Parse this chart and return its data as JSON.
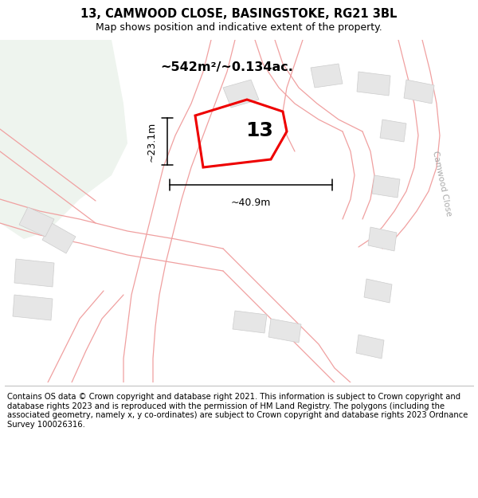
{
  "title": "13, CAMWOOD CLOSE, BASINGSTOKE, RG21 3BL",
  "subtitle": "Map shows position and indicative extent of the property.",
  "area_text": "~542m²/~0.134ac.",
  "label": "13",
  "dim_h": "~23.1m",
  "dim_w": "~40.9m",
  "road_label": "Camwood Close",
  "footer": "Contains OS data © Crown copyright and database right 2021. This information is subject to Crown copyright and database rights 2023 and is reproduced with the permission of HM Land Registry. The polygons (including the associated geometry, namely x, y co-ordinates) are subject to Crown copyright and database rights 2023 Ordnance Survey 100026316.",
  "bg_color": "#ffffff",
  "map_bg": "#f7f7f7",
  "green_area": "#eef4ee",
  "property_color": "#ee0000",
  "road_lines_color": "#f0a0a0",
  "building_color": "#e6e6e6",
  "building_stroke": "#cccccc",
  "title_fontsize": 10.5,
  "subtitle_fontsize": 9,
  "footer_fontsize": 7.2,
  "road_label_color": "#aaaaaa"
}
